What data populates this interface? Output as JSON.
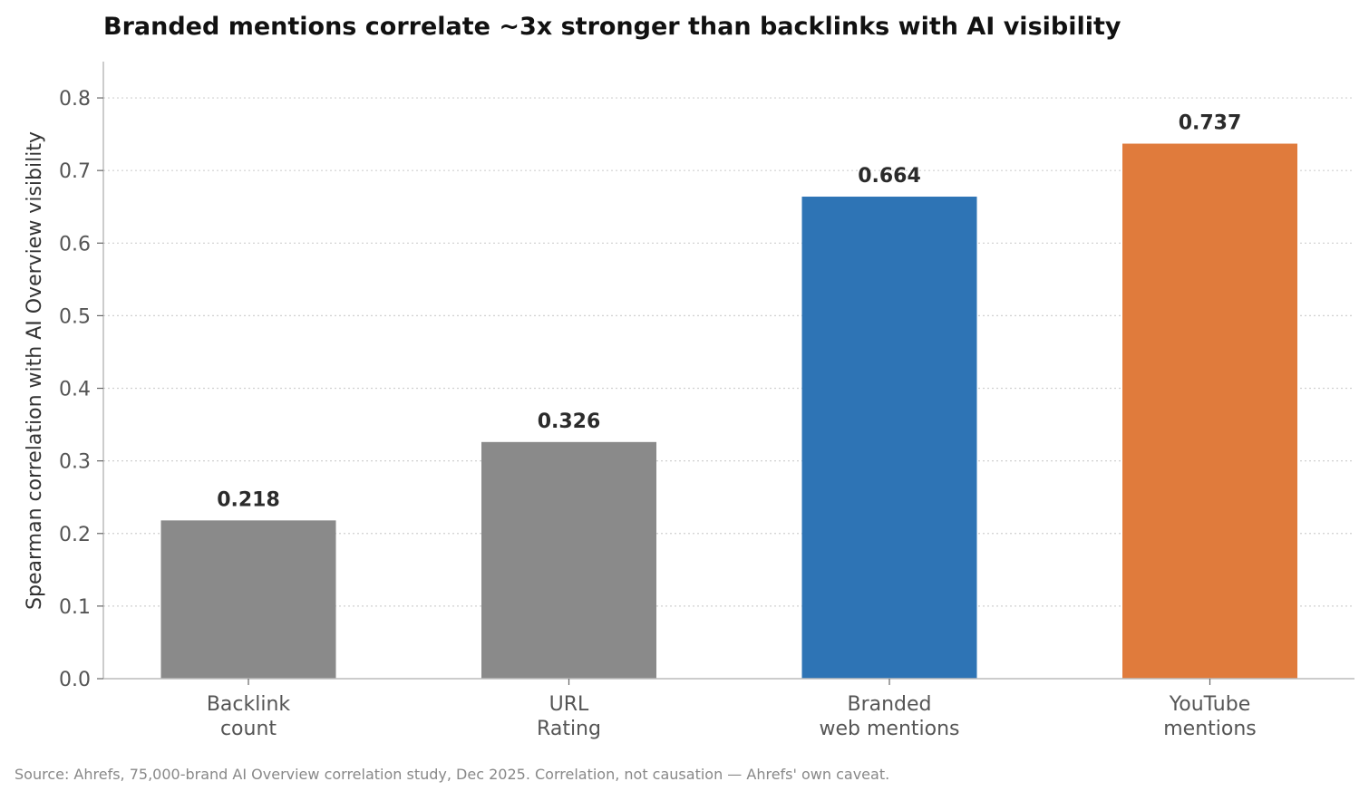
{
  "chart_data": {
    "type": "bar",
    "title": "Branded mentions correlate ~3x stronger than backlinks with AI visibility",
    "ylabel": "Spearman correlation with AI Overview visibility",
    "xlabel": "",
    "categories": [
      [
        "Backlink",
        "count"
      ],
      [
        "URL",
        "Rating"
      ],
      [
        "Branded",
        "web mentions"
      ],
      [
        "YouTube",
        "mentions"
      ]
    ],
    "values": [
      0.218,
      0.326,
      0.664,
      0.737
    ],
    "value_labels": [
      "0.218",
      "0.326",
      "0.664",
      "0.737"
    ],
    "bar_colors": [
      "#8a8a8a",
      "#8a8a8a",
      "#2e74b5",
      "#e07b3c"
    ],
    "ylim": [
      0,
      0.85
    ],
    "yticks": [
      0.0,
      0.1,
      0.2,
      0.3,
      0.4,
      0.5,
      0.6,
      0.7,
      0.8
    ],
    "ytick_labels": [
      "0.0",
      "0.1",
      "0.2",
      "0.3",
      "0.4",
      "0.5",
      "0.6",
      "0.7",
      "0.8"
    ],
    "grid": "horizontal-dotted",
    "source_note": "Source: Ahrefs, 75,000-brand AI Overview correlation study, Dec 2025. Correlation, not causation — Ahrefs' own caveat."
  }
}
